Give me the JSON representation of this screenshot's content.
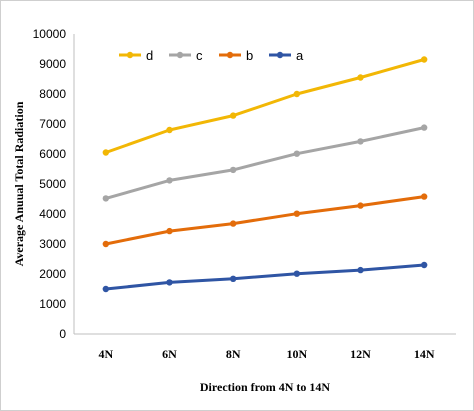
{
  "chart_data": {
    "type": "line",
    "categories": [
      "4N",
      "6N",
      "8N",
      "10N",
      "12N",
      "14N"
    ],
    "xlabel": "Direction from 4N to 14N",
    "ylabel": "Average Anuual Total Radiation",
    "ylim": [
      0,
      10000
    ],
    "yticks": [
      0,
      1000,
      2000,
      3000,
      4000,
      5000,
      6000,
      7000,
      8000,
      9000,
      10000
    ],
    "grid": false,
    "legend_position": "top-left",
    "series": [
      {
        "name": "d",
        "color": "#F2B705",
        "values": [
          6050,
          6800,
          7280,
          8000,
          8550,
          9150
        ]
      },
      {
        "name": "c",
        "color": "#A5A5A5",
        "values": [
          4520,
          5120,
          5470,
          6010,
          6420,
          6880
        ]
      },
      {
        "name": "b",
        "color": "#E36C0A",
        "values": [
          3000,
          3430,
          3680,
          4010,
          4280,
          4580
        ]
      },
      {
        "name": "a",
        "color": "#2F55A4",
        "values": [
          1500,
          1720,
          1840,
          2010,
          2130,
          2300
        ]
      }
    ]
  }
}
